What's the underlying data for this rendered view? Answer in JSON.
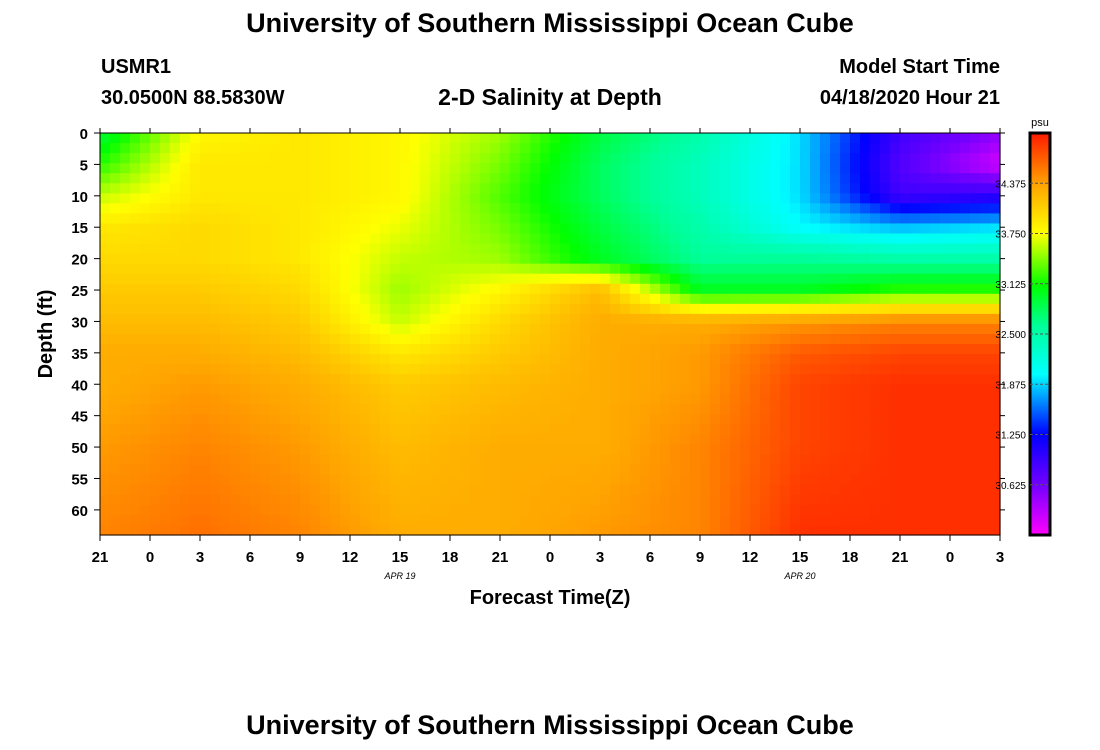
{
  "header": {
    "title": "University of Southern Mississippi Ocean Cube",
    "station": "USMR1",
    "coords": "30.0500N 88.5830W",
    "plot_title": "2-D Salinity at Depth",
    "start_label": "Model Start Time",
    "start_value": "04/18/2020 Hour 21"
  },
  "footer": {
    "title": "University of Southern Mississippi Ocean Cube"
  },
  "chart_data": {
    "type": "heatmap",
    "title": "2-D Salinity at Depth",
    "xlabel": "Forecast Time(Z)",
    "ylabel": "Depth (ft)",
    "x_tick_labels": [
      "21",
      "0",
      "3",
      "6",
      "9",
      "12",
      "15",
      "18",
      "21",
      "0",
      "3",
      "6",
      "9",
      "12",
      "15",
      "18",
      "21",
      "0",
      "3"
    ],
    "x_date_labels": [
      {
        "label": "APR 19",
        "at_tick": 6
      },
      {
        "label": "APR 20",
        "at_tick": 14
      }
    ],
    "y_tick_labels": [
      "0",
      "5",
      "10",
      "15",
      "20",
      "25",
      "30",
      "35",
      "40",
      "45",
      "50",
      "55",
      "60"
    ],
    "y_range": [
      0,
      64
    ],
    "colorbar": {
      "unit": "psu",
      "min": 30.0,
      "max": 35.0,
      "tick_labels": [
        "34.375",
        "33.750",
        "33.125",
        "32.500",
        "31.875",
        "31.250",
        "30.625"
      ],
      "tick_values": [
        34.375,
        33.75,
        33.125,
        32.5,
        31.875,
        31.25,
        30.625
      ]
    },
    "grid_time_hours": [
      0,
      6,
      12,
      18,
      24,
      30,
      36,
      42,
      48,
      54
    ],
    "grid_depth_ft": [
      0,
      5,
      10,
      15,
      20,
      25,
      30,
      35,
      40,
      50,
      64
    ],
    "salinity_grid": [
      [
        32.9,
        33.8,
        33.9,
        33.8,
        33.5,
        32.9,
        32.5,
        31.9,
        30.9,
        30.5
      ],
      [
        33.2,
        33.9,
        33.9,
        33.8,
        33.4,
        32.8,
        32.4,
        31.9,
        30.8,
        30.2
      ],
      [
        33.6,
        33.9,
        33.9,
        33.8,
        33.3,
        32.8,
        32.4,
        31.9,
        30.9,
        31.0
      ],
      [
        33.9,
        34.0,
        33.9,
        33.7,
        33.4,
        32.9,
        32.5,
        32.0,
        31.8,
        31.9
      ],
      [
        34.0,
        34.0,
        33.9,
        33.6,
        33.5,
        33.0,
        32.6,
        32.6,
        32.5,
        32.5
      ],
      [
        34.1,
        34.1,
        34.0,
        33.5,
        33.8,
        34.2,
        33.0,
        33.0,
        33.2,
        33.2
      ],
      [
        34.2,
        34.2,
        34.1,
        33.6,
        34.0,
        34.3,
        34.3,
        34.4,
        34.5,
        34.5
      ],
      [
        34.3,
        34.3,
        34.2,
        33.9,
        34.1,
        34.3,
        34.4,
        34.7,
        34.8,
        34.8
      ],
      [
        34.3,
        34.4,
        34.3,
        34.1,
        34.2,
        34.3,
        34.4,
        34.8,
        34.9,
        34.9
      ],
      [
        34.4,
        34.5,
        34.4,
        34.2,
        34.3,
        34.3,
        34.5,
        34.8,
        34.9,
        34.9
      ],
      [
        34.5,
        34.6,
        34.5,
        34.3,
        34.3,
        34.4,
        34.5,
        34.9,
        34.9,
        34.9
      ]
    ]
  }
}
